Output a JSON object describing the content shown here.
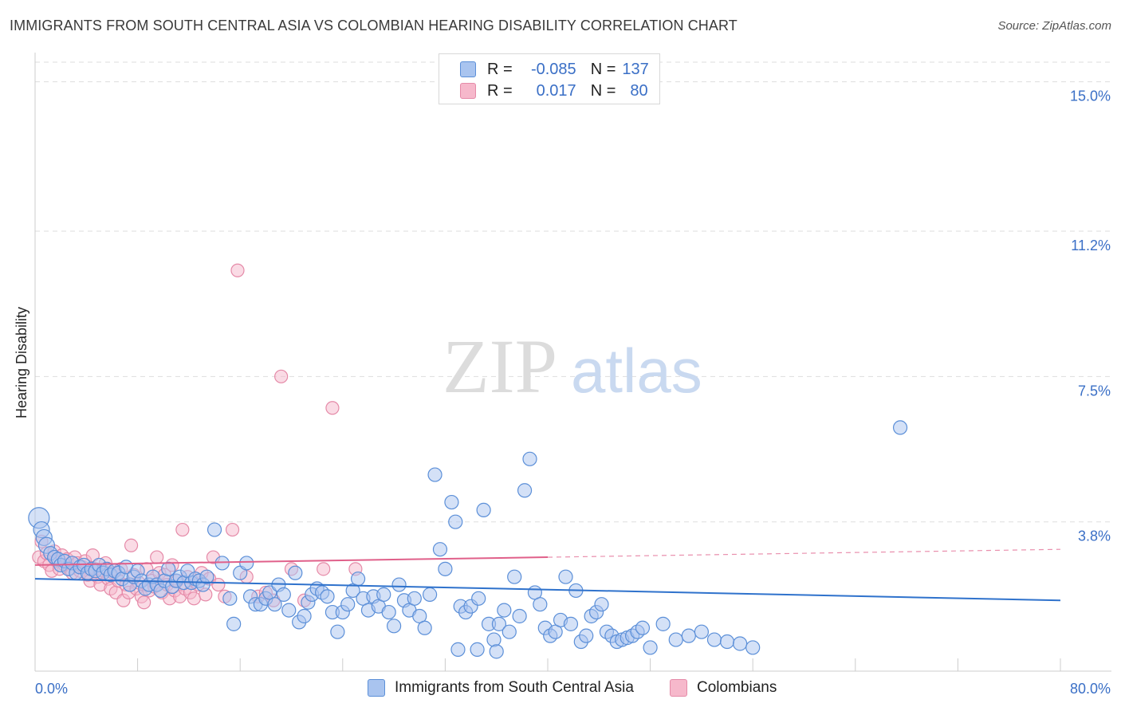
{
  "title": "IMMIGRANTS FROM SOUTH CENTRAL ASIA VS COLOMBIAN HEARING DISABILITY CORRELATION CHART",
  "source": "Source: ZipAtlas.com",
  "watermark": {
    "zip": "ZIP",
    "atlas": "atlas"
  },
  "legend": {
    "rows": [
      {
        "r_label": "R =",
        "r_value": "-0.085",
        "n_label": "N =",
        "n_value": "137"
      },
      {
        "r_label": "R =",
        "r_value": "0.017",
        "n_label": "N =",
        "n_value": "80"
      }
    ]
  },
  "colors": {
    "blue_fill": "#a9c4ef",
    "blue_stroke": "#5b8fd8",
    "blue_line": "#2f72cc",
    "pink_fill": "#f6b8cb",
    "pink_stroke": "#e58aa8",
    "pink_line": "#e0608a",
    "tick_label": "#3a6fc6",
    "grid": "#dddddd"
  },
  "chart_data": {
    "type": "scatter",
    "title": "IMMIGRANTS FROM SOUTH CENTRAL ASIA VS COLOMBIAN HEARING DISABILITY CORRELATION CHART",
    "xlabel": "",
    "ylabel": "Hearing Disability",
    "xlim": [
      0,
      80
    ],
    "ylim": [
      0,
      15.5
    ],
    "x_tick_labels": [
      "0.0%",
      "80.0%"
    ],
    "y_ticks": [
      3.8,
      7.5,
      11.2,
      15.0
    ],
    "y_tick_labels": [
      "3.8%",
      "7.5%",
      "11.2%",
      "15.0%"
    ],
    "grid": true,
    "legend_position": "top-center",
    "series": [
      {
        "name": "Immigrants from South Central Asia",
        "color": "blue",
        "r": -0.085,
        "n": 137,
        "trend": {
          "x": [
            0,
            80
          ],
          "y": [
            2.35,
            1.8
          ]
        },
        "points": [
          [
            0.3,
            3.9
          ],
          [
            0.5,
            3.6
          ],
          [
            0.7,
            3.4
          ],
          [
            0.9,
            3.2
          ],
          [
            1.2,
            3.0
          ],
          [
            1.5,
            2.9
          ],
          [
            1.8,
            2.85
          ],
          [
            2.0,
            2.7
          ],
          [
            2.3,
            2.8
          ],
          [
            2.6,
            2.6
          ],
          [
            2.9,
            2.75
          ],
          [
            3.2,
            2.5
          ],
          [
            3.5,
            2.65
          ],
          [
            3.8,
            2.7
          ],
          [
            4.1,
            2.5
          ],
          [
            4.4,
            2.6
          ],
          [
            4.7,
            2.55
          ],
          [
            5.0,
            2.7
          ],
          [
            5.3,
            2.5
          ],
          [
            5.6,
            2.6
          ],
          [
            5.9,
            2.45
          ],
          [
            6.2,
            2.55
          ],
          [
            6.5,
            2.5
          ],
          [
            6.8,
            2.35
          ],
          [
            7.1,
            2.65
          ],
          [
            7.4,
            2.2
          ],
          [
            7.7,
            2.4
          ],
          [
            8.0,
            2.55
          ],
          [
            8.3,
            2.3
          ],
          [
            8.6,
            2.1
          ],
          [
            8.9,
            2.2
          ],
          [
            9.2,
            2.4
          ],
          [
            9.5,
            2.2
          ],
          [
            9.8,
            2.05
          ],
          [
            10.1,
            2.3
          ],
          [
            10.4,
            2.6
          ],
          [
            10.7,
            2.15
          ],
          [
            11.0,
            2.3
          ],
          [
            11.3,
            2.4
          ],
          [
            11.6,
            2.25
          ],
          [
            11.9,
            2.55
          ],
          [
            12.2,
            2.25
          ],
          [
            12.5,
            2.35
          ],
          [
            12.8,
            2.3
          ],
          [
            13.1,
            2.2
          ],
          [
            13.4,
            2.4
          ],
          [
            14.0,
            3.6
          ],
          [
            14.6,
            2.75
          ],
          [
            15.2,
            1.85
          ],
          [
            15.5,
            1.2
          ],
          [
            16.0,
            2.5
          ],
          [
            16.5,
            2.75
          ],
          [
            16.8,
            1.9
          ],
          [
            17.2,
            1.7
          ],
          [
            17.6,
            1.7
          ],
          [
            18.0,
            1.85
          ],
          [
            18.3,
            2.0
          ],
          [
            18.7,
            1.7
          ],
          [
            19.0,
            2.2
          ],
          [
            19.4,
            1.95
          ],
          [
            19.8,
            1.55
          ],
          [
            20.3,
            2.5
          ],
          [
            20.6,
            1.25
          ],
          [
            21.0,
            1.4
          ],
          [
            21.3,
            1.75
          ],
          [
            21.6,
            1.95
          ],
          [
            22.0,
            2.1
          ],
          [
            22.4,
            2.0
          ],
          [
            22.8,
            1.9
          ],
          [
            23.2,
            1.5
          ],
          [
            23.6,
            1.0
          ],
          [
            24.0,
            1.5
          ],
          [
            24.4,
            1.7
          ],
          [
            24.8,
            2.05
          ],
          [
            25.2,
            2.35
          ],
          [
            25.6,
            1.85
          ],
          [
            26.0,
            1.55
          ],
          [
            26.4,
            1.9
          ],
          [
            26.8,
            1.65
          ],
          [
            27.2,
            1.95
          ],
          [
            27.6,
            1.5
          ],
          [
            28.0,
            1.15
          ],
          [
            28.4,
            2.2
          ],
          [
            28.8,
            1.8
          ],
          [
            29.2,
            1.55
          ],
          [
            29.6,
            1.85
          ],
          [
            30.0,
            1.4
          ],
          [
            30.4,
            1.1
          ],
          [
            30.8,
            1.95
          ],
          [
            31.2,
            5.0
          ],
          [
            31.6,
            3.1
          ],
          [
            32.0,
            2.6
          ],
          [
            32.5,
            4.3
          ],
          [
            32.8,
            3.8
          ],
          [
            33.2,
            1.65
          ],
          [
            33.6,
            1.5
          ],
          [
            34.0,
            1.65
          ],
          [
            34.6,
            1.85
          ],
          [
            35.0,
            4.1
          ],
          [
            35.4,
            1.2
          ],
          [
            35.8,
            0.8
          ],
          [
            36.2,
            1.2
          ],
          [
            36.6,
            1.55
          ],
          [
            37.0,
            1.0
          ],
          [
            37.4,
            2.4
          ],
          [
            37.8,
            1.4
          ],
          [
            38.2,
            4.6
          ],
          [
            38.6,
            5.4
          ],
          [
            39.0,
            2.0
          ],
          [
            39.4,
            1.7
          ],
          [
            39.8,
            1.1
          ],
          [
            40.2,
            0.9
          ],
          [
            40.6,
            1.0
          ],
          [
            41.0,
            1.3
          ],
          [
            41.4,
            2.4
          ],
          [
            41.8,
            1.2
          ],
          [
            42.2,
            2.05
          ],
          [
            42.6,
            0.75
          ],
          [
            43.0,
            0.9
          ],
          [
            43.4,
            1.4
          ],
          [
            43.8,
            1.5
          ],
          [
            44.2,
            1.7
          ],
          [
            44.6,
            1.0
          ],
          [
            45.0,
            0.9
          ],
          [
            45.4,
            0.75
          ],
          [
            45.8,
            0.8
          ],
          [
            46.2,
            0.85
          ],
          [
            46.6,
            0.9
          ],
          [
            47.0,
            1.0
          ],
          [
            47.4,
            1.1
          ],
          [
            48.0,
            0.6
          ],
          [
            49.0,
            1.2
          ],
          [
            50.0,
            0.8
          ],
          [
            51.0,
            0.9
          ],
          [
            52.0,
            1.0
          ],
          [
            53.0,
            0.8
          ],
          [
            54.0,
            0.75
          ],
          [
            55.0,
            0.7
          ],
          [
            56.0,
            0.6
          ],
          [
            67.5,
            6.2
          ],
          [
            33.0,
            0.55
          ],
          [
            34.5,
            0.55
          ],
          [
            36.0,
            0.5
          ]
        ]
      },
      {
        "name": "Colombians",
        "color": "pink",
        "r": 0.017,
        "n": 80,
        "trend": {
          "x": [
            0,
            40
          ],
          "y": [
            2.7,
            2.9
          ]
        },
        "trend_dashed": {
          "x": [
            40,
            80
          ],
          "y": [
            2.9,
            3.1
          ]
        },
        "points": [
          [
            0.3,
            2.9
          ],
          [
            0.5,
            3.3
          ],
          [
            0.7,
            2.8
          ],
          [
            0.9,
            3.0
          ],
          [
            1.1,
            2.7
          ],
          [
            1.3,
            2.55
          ],
          [
            1.5,
            3.05
          ],
          [
            1.7,
            2.8
          ],
          [
            1.9,
            2.6
          ],
          [
            2.1,
            2.95
          ],
          [
            2.3,
            2.7
          ],
          [
            2.5,
            2.85
          ],
          [
            2.7,
            2.6
          ],
          [
            2.9,
            2.5
          ],
          [
            3.1,
            2.9
          ],
          [
            3.3,
            2.75
          ],
          [
            3.5,
            2.55
          ],
          [
            3.7,
            2.65
          ],
          [
            3.9,
            2.8
          ],
          [
            4.1,
            2.45
          ],
          [
            4.3,
            2.3
          ],
          [
            4.5,
            2.95
          ],
          [
            4.7,
            2.6
          ],
          [
            4.9,
            2.4
          ],
          [
            5.1,
            2.2
          ],
          [
            5.3,
            2.55
          ],
          [
            5.5,
            2.75
          ],
          [
            5.7,
            2.35
          ],
          [
            5.9,
            2.1
          ],
          [
            6.1,
            2.5
          ],
          [
            6.3,
            2.0
          ],
          [
            6.5,
            2.3
          ],
          [
            6.7,
            2.6
          ],
          [
            6.9,
            1.8
          ],
          [
            7.1,
            2.2
          ],
          [
            7.3,
            2.0
          ],
          [
            7.5,
            3.2
          ],
          [
            7.7,
            2.45
          ],
          [
            7.9,
            2.1
          ],
          [
            8.1,
            2.25
          ],
          [
            8.3,
            1.9
          ],
          [
            8.5,
            1.75
          ],
          [
            8.7,
            2.6
          ],
          [
            8.9,
            2.05
          ],
          [
            9.1,
            2.3
          ],
          [
            9.3,
            2.15
          ],
          [
            9.5,
            2.9
          ],
          [
            9.7,
            2.5
          ],
          [
            9.9,
            2.0
          ],
          [
            10.1,
            2.45
          ],
          [
            10.3,
            2.2
          ],
          [
            10.5,
            1.85
          ],
          [
            10.7,
            2.7
          ],
          [
            10.9,
            2.05
          ],
          [
            11.1,
            2.3
          ],
          [
            11.3,
            1.9
          ],
          [
            11.5,
            3.6
          ],
          [
            11.7,
            2.1
          ],
          [
            11.9,
            2.4
          ],
          [
            12.1,
            2.0
          ],
          [
            12.4,
            1.85
          ],
          [
            12.7,
            2.2
          ],
          [
            13.0,
            2.5
          ],
          [
            13.3,
            1.95
          ],
          [
            13.6,
            2.35
          ],
          [
            13.9,
            2.9
          ],
          [
            14.3,
            2.2
          ],
          [
            14.8,
            1.9
          ],
          [
            15.4,
            3.6
          ],
          [
            15.8,
            10.2
          ],
          [
            16.5,
            2.4
          ],
          [
            17.4,
            1.9
          ],
          [
            18.0,
            2.0
          ],
          [
            18.6,
            1.8
          ],
          [
            19.2,
            7.5
          ],
          [
            20.0,
            2.6
          ],
          [
            21.0,
            1.8
          ],
          [
            22.5,
            2.6
          ],
          [
            23.2,
            6.7
          ],
          [
            25.0,
            2.6
          ]
        ]
      }
    ]
  },
  "bottom_legend": {
    "items": [
      "Immigrants from South Central Asia",
      "Colombians"
    ]
  }
}
